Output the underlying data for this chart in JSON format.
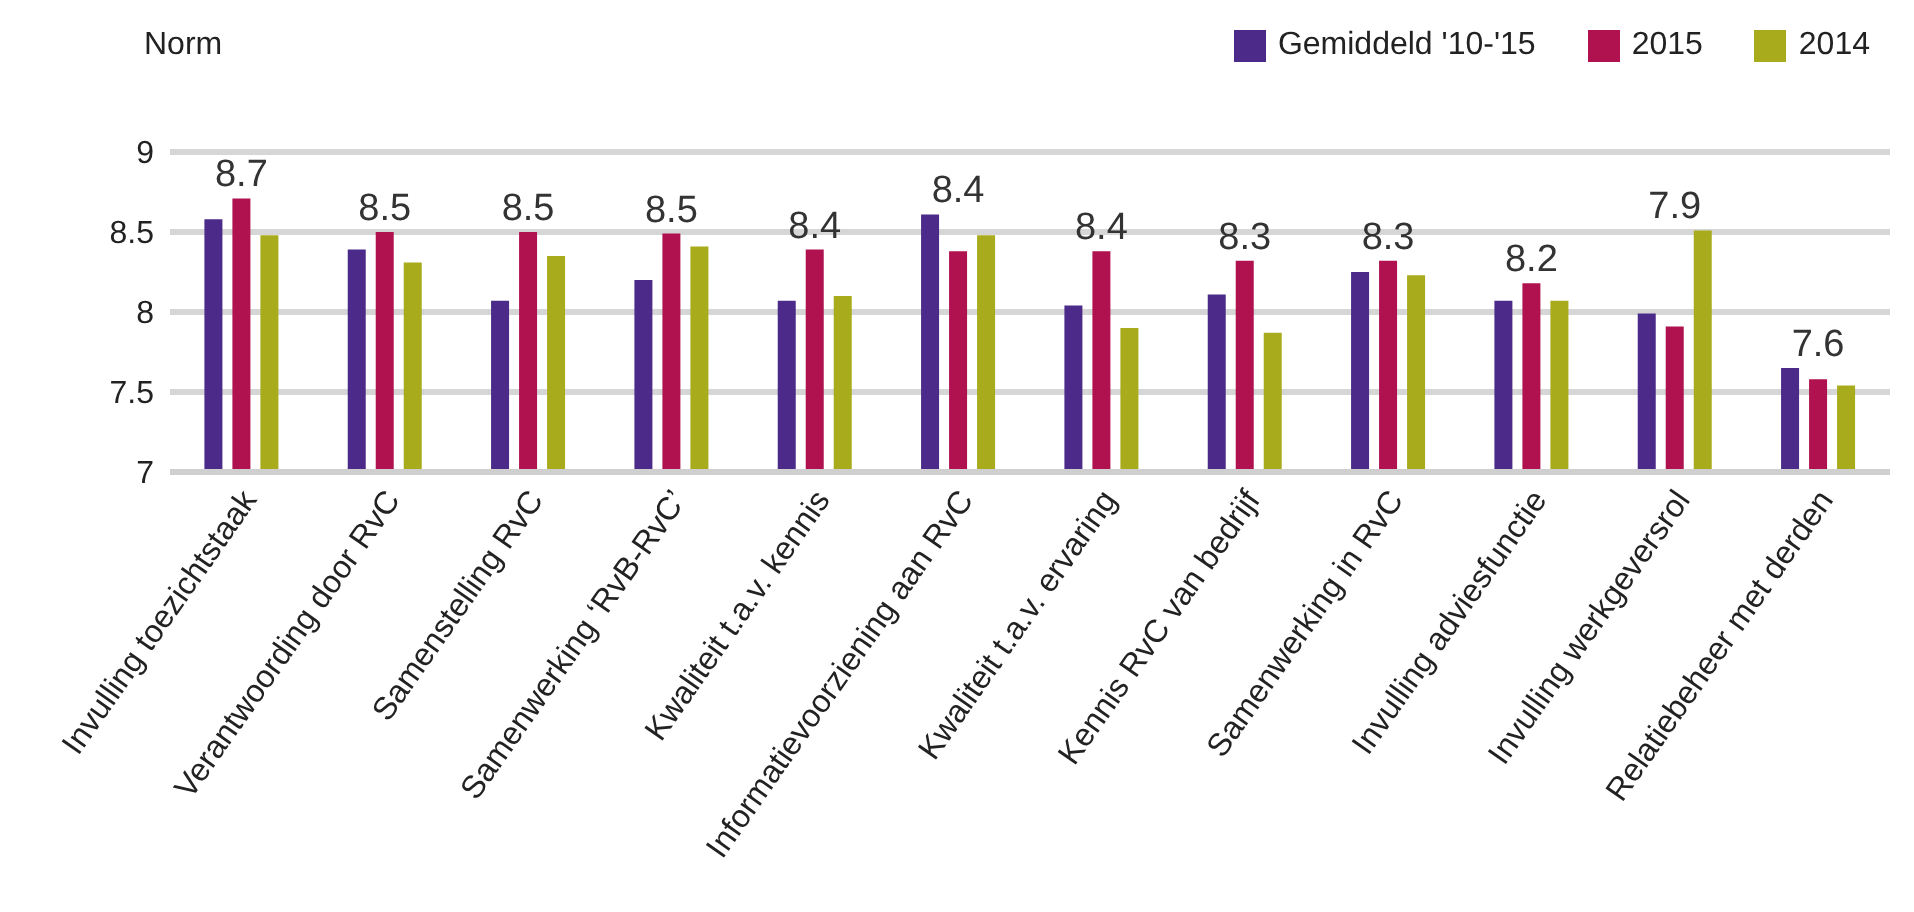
{
  "chart_data": {
    "type": "bar",
    "ylabel": "Norm",
    "categories": [
      "Invulling toezichtstaak",
      "Verantwoording door RvC",
      "Samenstelling RvC",
      "Samenwerking ‘RvB-RvC’",
      "Kwaliteit t.a.v. kennis",
      "Informatievoorziening aan RvC",
      "Kwaliteit t.a.v. ervaring",
      "Kennis RvC van bedrijf",
      "Samenwerking in RvC",
      "Invulling adviesfunctie",
      "Invulling werkgeversrol",
      "Relatiebeheer met derden"
    ],
    "series": [
      {
        "name": "Gemiddeld '10-'15",
        "color": "#4b2a8a",
        "values": [
          8.58,
          8.39,
          8.07,
          8.2,
          8.07,
          8.61,
          8.04,
          8.11,
          8.25,
          8.07,
          7.99,
          7.65
        ]
      },
      {
        "name": "2015",
        "color": "#b0124f",
        "values": [
          8.71,
          8.5,
          8.5,
          8.49,
          8.39,
          8.38,
          8.38,
          8.32,
          8.32,
          8.18,
          7.91,
          7.58
        ],
        "value_labels": [
          "8.7",
          "8.5",
          "8.5",
          "8.5",
          "8.4",
          "8.4",
          "8.4",
          "8.3",
          "8.3",
          "8.2",
          "7.9",
          "7.6"
        ]
      },
      {
        "name": "2014",
        "color": "#a8ab1c",
        "values": [
          8.48,
          8.31,
          8.35,
          8.41,
          8.1,
          8.48,
          7.9,
          7.87,
          8.23,
          8.07,
          8.51,
          7.54
        ]
      }
    ],
    "ylim": [
      7,
      9
    ],
    "yticks": [
      7,
      7.5,
      8,
      8.5,
      9
    ],
    "grid": "y",
    "legend": "top right"
  }
}
